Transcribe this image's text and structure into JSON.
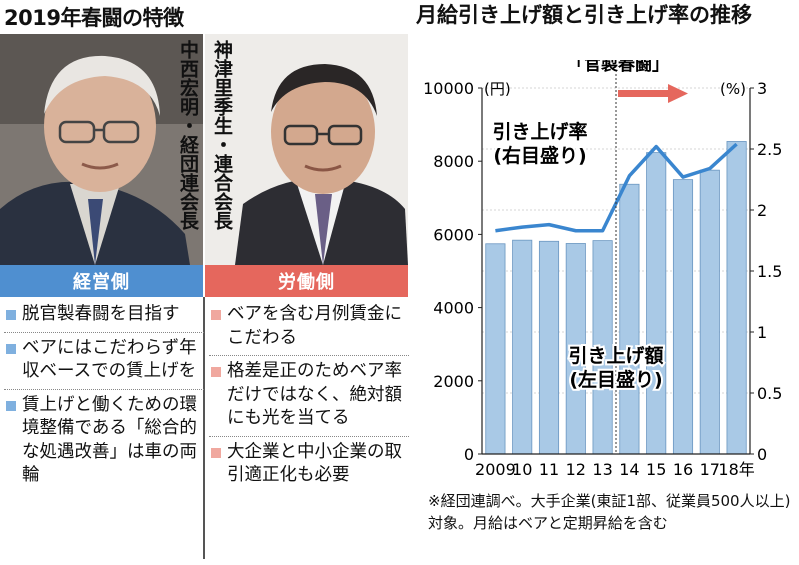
{
  "left_panel": {
    "title": "2019年春闘の特徴",
    "left_person": {
      "name": "中西宏明・経団連会長",
      "side": "経営側"
    },
    "right_person": {
      "name": "神津里季生・連合会長",
      "side": "労働側"
    },
    "left_points": [
      "脱官製春闘を目指す",
      "ベアにはこだわらず年収ベースでの賃上げを",
      "賃上げと働くための環境整備である「総合的な処遇改善」は車の両輪"
    ],
    "right_points": [
      "ベアを含む月例賃金にこだわる",
      "格差是正のためベア率だけではなく、絶対額にも光を当てる",
      "大企業と中小企業の取引適正化も必要"
    ],
    "colors": {
      "management": "#4f8fd0",
      "labor": "#e5675d"
    }
  },
  "chart_data": {
    "type": "bar",
    "title": "月給引き上げ額と引き上げ率の推移",
    "categories": [
      "2009",
      "10",
      "11",
      "12",
      "13",
      "14",
      "15",
      "16",
      "17",
      "18年"
    ],
    "left_axis": {
      "unit": "(円)",
      "ylim": [
        0,
        10000
      ],
      "ticks": [
        "0",
        "2000",
        "4000",
        "6000",
        "8000",
        "10000"
      ]
    },
    "right_axis": {
      "unit": "(%)",
      "ylim": [
        0,
        3
      ],
      "ticks": [
        "0",
        "0.5",
        "1",
        "1.5",
        "2",
        "2.5",
        "3"
      ]
    },
    "series": [
      {
        "type": "bar",
        "axis": "left",
        "label": [
          "引き上げ額",
          "(左目盛り)"
        ],
        "values": [
          5744,
          5842,
          5812,
          5752,
          5830,
          7370,
          8235,
          7497,
          7755,
          8539
        ]
      },
      {
        "type": "line",
        "axis": "right",
        "label": [
          "引き上げ率",
          "(右目盛り)"
        ],
        "values": [
          1.83,
          1.86,
          1.88,
          1.83,
          1.83,
          2.28,
          2.52,
          2.27,
          2.34,
          2.54
        ]
      }
    ],
    "annotation": {
      "text": "「官製春闘」",
      "from_category": "14"
    },
    "colors": {
      "bar": "#a9c9e6",
      "line": "#3a86cf",
      "arrow": "#e5675d"
    }
  },
  "footnote": "※経団連調べ。大手企業(東証1部、従業員500人以上)対象。月給はベアと定期昇給を含む"
}
